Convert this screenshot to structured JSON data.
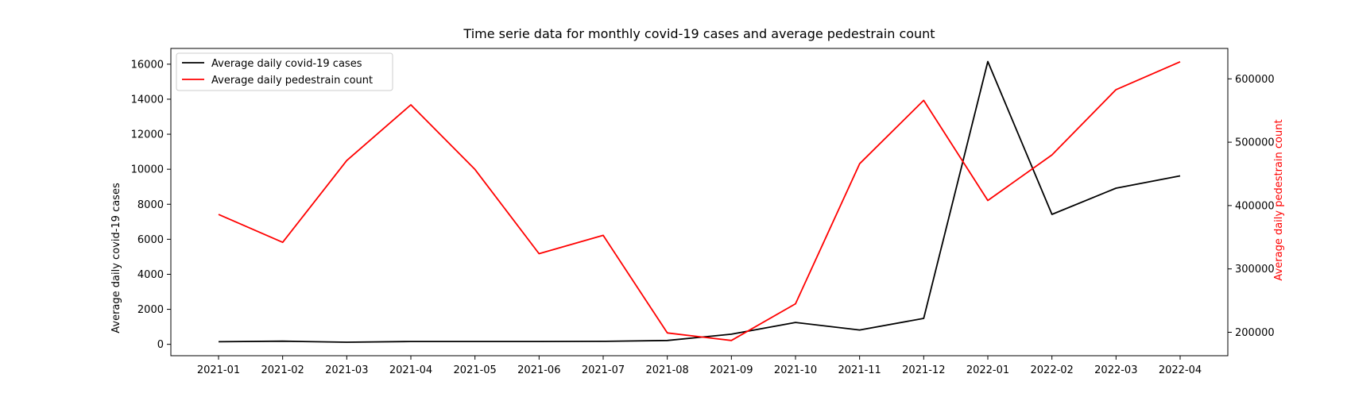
{
  "chart_data": {
    "type": "line",
    "title": "Time serie data for monthly covid-19 cases and average pedestrain count",
    "categories": [
      "2021-01",
      "2021-02",
      "2021-03",
      "2021-04",
      "2021-05",
      "2021-06",
      "2021-07",
      "2021-08",
      "2021-09",
      "2021-10",
      "2021-11",
      "2021-12",
      "2022-01",
      "2022-02",
      "2022-03",
      "2022-04"
    ],
    "ylabel": "Average daily covid-19 cases",
    "y2label": "Average daily pedestrain count",
    "ylim": [
      -650,
      16900
    ],
    "y2lim": [
      163000,
      648000
    ],
    "yticks": [
      0,
      2000,
      4000,
      6000,
      8000,
      10000,
      12000,
      14000,
      16000
    ],
    "y2ticks": [
      200000,
      300000,
      400000,
      500000,
      600000
    ],
    "legend_position": "top-left",
    "grid": false,
    "colors": {
      "cases": "#000000",
      "pedestrian": "#ff0000",
      "axis2_label": "#ff0000"
    },
    "series": [
      {
        "key": "cases",
        "name": "Average daily covid-19 cases",
        "axis": "left",
        "values": [
          150,
          180,
          120,
          160,
          160,
          160,
          170,
          220,
          580,
          1250,
          820,
          1480,
          16150,
          7420,
          8920,
          9620
        ]
      },
      {
        "key": "pedestrian",
        "name": "Average daily pedestrain count",
        "axis": "right",
        "values": [
          386000,
          342000,
          471000,
          559000,
          457000,
          324000,
          353000,
          199000,
          187000,
          245000,
          466000,
          566000,
          408000,
          480000,
          583000,
          627000
        ]
      }
    ]
  }
}
